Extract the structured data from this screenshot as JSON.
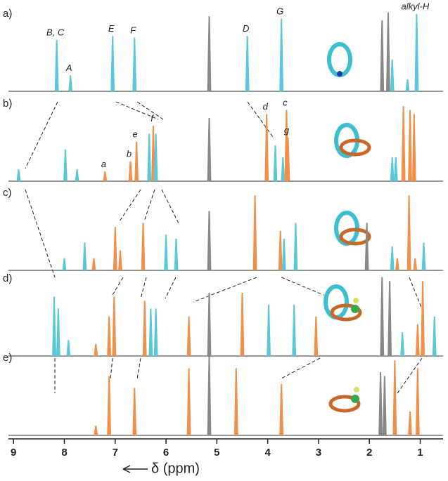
{
  "chart_data": {
    "type": "nmr",
    "xlabel": "δ (ppm)",
    "xlim": [
      9.1,
      0.55
    ],
    "xticks": [
      9,
      8,
      7,
      6,
      5,
      4,
      3,
      2,
      1
    ],
    "panels": [
      {
        "label": "a)",
        "peaks": [
          {
            "x": 8.15,
            "height": 0.65,
            "color": "#5bc8d8",
            "label": "B, C"
          },
          {
            "x": 7.88,
            "height": 0.2,
            "color": "#5bc8d8",
            "label": "A"
          },
          {
            "x": 7.05,
            "height": 0.7,
            "color": "#5bc8d8",
            "label": "E"
          },
          {
            "x": 6.62,
            "height": 0.68,
            "color": "#5bc8d8",
            "label": "F"
          },
          {
            "x": 5.15,
            "height": 0.95,
            "color": "#888888"
          },
          {
            "x": 4.4,
            "height": 0.7,
            "color": "#5bc8d8",
            "label": "D"
          },
          {
            "x": 3.73,
            "height": 0.92,
            "color": "#5bc8d8",
            "label": "G"
          },
          {
            "x": 1.75,
            "height": 0.9,
            "color": "#888888"
          },
          {
            "x": 1.63,
            "height": 1.0,
            "color": "#888888"
          },
          {
            "x": 1.55,
            "height": 0.4,
            "color": "#5bc8d8"
          },
          {
            "x": 1.25,
            "height": 0.15,
            "color": "#5bc8d8"
          },
          {
            "x": 1.07,
            "height": 0.98,
            "color": "#5bc8d8",
            "label": "alkyl-H"
          }
        ]
      },
      {
        "label": "b)",
        "peaks": [
          {
            "x": 8.9,
            "height": 0.15,
            "color": "#5bc8d8"
          },
          {
            "x": 7.98,
            "height": 0.4,
            "color": "#5bc8d8"
          },
          {
            "x": 7.75,
            "height": 0.15,
            "color": "#5bc8d8"
          },
          {
            "x": 7.2,
            "height": 0.12,
            "color": "#f0904a",
            "label": "a"
          },
          {
            "x": 6.7,
            "height": 0.25,
            "color": "#f0904a",
            "label": "b"
          },
          {
            "x": 6.58,
            "height": 0.5,
            "color": "#f0904a",
            "label": "e"
          },
          {
            "x": 6.33,
            "height": 0.6,
            "color": "#5bc8d8"
          },
          {
            "x": 6.25,
            "height": 0.7,
            "color": "#f0904a",
            "label": "f"
          },
          {
            "x": 6.2,
            "height": 0.6,
            "color": "#5bc8d8"
          },
          {
            "x": 5.15,
            "height": 0.8,
            "color": "#888888"
          },
          {
            "x": 4.02,
            "height": 0.85,
            "color": "#f0904a",
            "label": "d"
          },
          {
            "x": 3.85,
            "height": 0.45,
            "color": "#5bc8d8"
          },
          {
            "x": 3.7,
            "height": 0.3,
            "color": "#5bc8d8"
          },
          {
            "x": 3.63,
            "height": 0.9,
            "color": "#f0904a",
            "label": "c"
          },
          {
            "x": 3.6,
            "height": 0.55,
            "color": "#f0904a",
            "label": "g"
          },
          {
            "x": 1.55,
            "height": 0.3,
            "color": "#5bc8d8"
          },
          {
            "x": 1.48,
            "height": 0.3,
            "color": "#5bc8d8"
          },
          {
            "x": 1.33,
            "height": 0.95,
            "color": "#f0904a"
          },
          {
            "x": 1.2,
            "height": 0.9,
            "color": "#f0904a"
          },
          {
            "x": 1.12,
            "height": 0.85,
            "color": "#f0904a"
          }
        ]
      },
      {
        "label": "c)",
        "peaks": [
          {
            "x": 8.0,
            "height": 0.15,
            "color": "#5bc8d8"
          },
          {
            "x": 7.6,
            "height": 0.35,
            "color": "#5bc8d8"
          },
          {
            "x": 7.42,
            "height": 0.15,
            "color": "#f0904a"
          },
          {
            "x": 7.0,
            "height": 0.55,
            "color": "#f0904a"
          },
          {
            "x": 6.9,
            "height": 0.25,
            "color": "#f0904a"
          },
          {
            "x": 6.45,
            "height": 0.6,
            "color": "#f0904a"
          },
          {
            "x": 6.0,
            "height": 0.45,
            "color": "#5bc8d8"
          },
          {
            "x": 5.8,
            "height": 0.4,
            "color": "#5bc8d8"
          },
          {
            "x": 5.15,
            "height": 0.75,
            "color": "#888888"
          },
          {
            "x": 4.25,
            "height": 0.95,
            "color": "#f0904a"
          },
          {
            "x": 3.75,
            "height": 0.5,
            "color": "#f0904a"
          },
          {
            "x": 3.68,
            "height": 0.4,
            "color": "#5bc8d8"
          },
          {
            "x": 3.45,
            "height": 0.6,
            "color": "#5bc8d8"
          },
          {
            "x": 2.05,
            "height": 0.6,
            "color": "#888888"
          },
          {
            "x": 1.55,
            "height": 0.3,
            "color": "#5bc8d8"
          },
          {
            "x": 1.45,
            "height": 0.15,
            "color": "#f0904a"
          },
          {
            "x": 1.22,
            "height": 0.95,
            "color": "#f0904a"
          },
          {
            "x": 1.1,
            "height": 0.15,
            "color": "#f0904a"
          },
          {
            "x": 0.93,
            "height": 0.35,
            "color": "#5bc8d8"
          }
        ]
      },
      {
        "label": "d)",
        "peaks": [
          {
            "x": 8.2,
            "height": 0.75,
            "color": "#5bc8d8"
          },
          {
            "x": 8.12,
            "height": 0.6,
            "color": "#5bc8d8"
          },
          {
            "x": 7.92,
            "height": 0.2,
            "color": "#5bc8d8"
          },
          {
            "x": 7.38,
            "height": 0.15,
            "color": "#f0904a"
          },
          {
            "x": 7.12,
            "height": 0.5,
            "color": "#f0904a"
          },
          {
            "x": 7.02,
            "height": 0.75,
            "color": "#f0904a"
          },
          {
            "x": 6.42,
            "height": 0.7,
            "color": "#f0904a"
          },
          {
            "x": 6.3,
            "height": 0.6,
            "color": "#5bc8d8"
          },
          {
            "x": 6.2,
            "height": 0.6,
            "color": "#5bc8d8"
          },
          {
            "x": 5.55,
            "height": 0.5,
            "color": "#f0904a"
          },
          {
            "x": 5.15,
            "height": 0.8,
            "color": "#888888"
          },
          {
            "x": 4.5,
            "height": 0.8,
            "color": "#f0904a"
          },
          {
            "x": 3.98,
            "height": 0.65,
            "color": "#5bc8d8"
          },
          {
            "x": 3.48,
            "height": 0.65,
            "color": "#5bc8d8"
          },
          {
            "x": 3.05,
            "height": 0.5,
            "color": "#f0904a"
          },
          {
            "x": 1.75,
            "height": 1.0,
            "color": "#888888"
          },
          {
            "x": 1.6,
            "height": 0.95,
            "color": "#888888"
          },
          {
            "x": 1.35,
            "height": 0.3,
            "color": "#5bc8d8"
          },
          {
            "x": 1.05,
            "height": 0.4,
            "color": "#f0904a"
          },
          {
            "x": 0.95,
            "height": 0.95,
            "color": "#f0904a"
          },
          {
            "x": 0.72,
            "height": 0.5,
            "color": "#5bc8d8"
          }
        ]
      },
      {
        "label": "e)",
        "peaks": [
          {
            "x": 7.38,
            "height": 0.12,
            "color": "#f0904a"
          },
          {
            "x": 7.12,
            "height": 0.75,
            "color": "#f0904a"
          },
          {
            "x": 6.62,
            "height": 0.6,
            "color": "#f0904a"
          },
          {
            "x": 5.55,
            "height": 0.85,
            "color": "#f0904a"
          },
          {
            "x": 5.15,
            "height": 1.0,
            "color": "#888888"
          },
          {
            "x": 4.62,
            "height": 0.85,
            "color": "#f0904a"
          },
          {
            "x": 3.73,
            "height": 0.65,
            "color": "#f0904a"
          },
          {
            "x": 1.78,
            "height": 0.8,
            "color": "#888888"
          },
          {
            "x": 1.7,
            "height": 0.75,
            "color": "#888888"
          },
          {
            "x": 1.5,
            "height": 0.95,
            "color": "#f0904a"
          },
          {
            "x": 1.2,
            "height": 0.3,
            "color": "#f0904a"
          },
          {
            "x": 1.05,
            "height": 0.85,
            "color": "#f0904a"
          }
        ]
      }
    ]
  }
}
